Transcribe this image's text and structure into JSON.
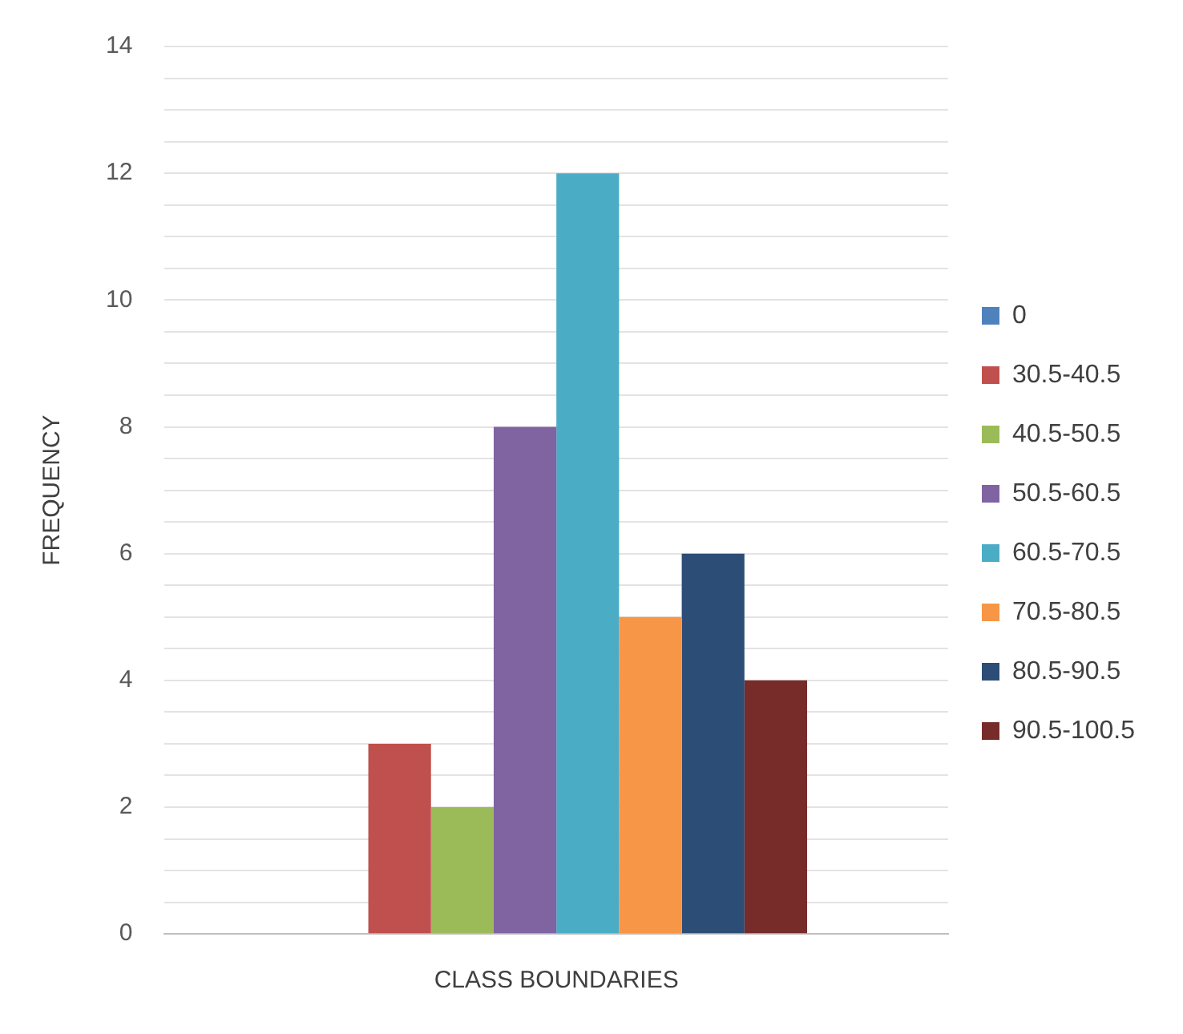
{
  "chart_data": {
    "type": "bar",
    "xlabel": "CLASS BOUNDARIES",
    "ylabel": "FREQUENCY",
    "categories": [
      null
    ],
    "series": [
      {
        "name": "0",
        "color": "#4f81bd",
        "values": [
          0
        ]
      },
      {
        "name": "30.5-40.5",
        "color": "#c0504d",
        "values": [
          3
        ]
      },
      {
        "name": "40.5-50.5",
        "color": "#9bbb59",
        "values": [
          2
        ]
      },
      {
        "name": "50.5-60.5",
        "color": "#8064a2",
        "values": [
          8
        ]
      },
      {
        "name": "60.5-70.5",
        "color": "#4bacc6",
        "values": [
          12
        ]
      },
      {
        "name": "70.5-80.5",
        "color": "#f79646",
        "values": [
          5
        ]
      },
      {
        "name": "80.5-90.5",
        "color": "#2c4d75",
        "values": [
          6
        ]
      },
      {
        "name": "90.5-100.5",
        "color": "#772c2a",
        "values": [
          4
        ]
      }
    ],
    "ylim": [
      0,
      14
    ],
    "yticks": [
      0,
      {
        "value": 0.5,
        "label": null
      },
      {
        "value": 1,
        "label": null
      },
      {
        "value": 1.5,
        "label": null
      },
      2,
      {
        "value": 2.5,
        "label": null
      },
      {
        "value": 3,
        "label": null
      },
      {
        "value": 3.5,
        "label": null
      },
      4,
      {
        "value": 4.5,
        "label": null
      },
      {
        "value": 5,
        "label": null
      },
      {
        "value": 5.5,
        "label": null
      },
      6,
      {
        "value": 6.5,
        "label": null
      },
      {
        "value": 7,
        "label": null
      },
      {
        "value": 7.5,
        "label": null
      },
      8,
      {
        "value": 8.5,
        "label": null
      },
      {
        "value": 9,
        "label": null
      },
      {
        "value": 9.5,
        "label": null
      },
      10,
      {
        "value": 10.5,
        "label": null
      },
      {
        "value": 11,
        "label": null
      },
      {
        "value": 11.5,
        "label": null
      },
      12,
      {
        "value": 12.5,
        "label": null
      },
      {
        "value": 13,
        "label": null
      },
      {
        "value": 13.5,
        "label": null
      },
      14
    ],
    "grid": "y",
    "legend": "right"
  }
}
